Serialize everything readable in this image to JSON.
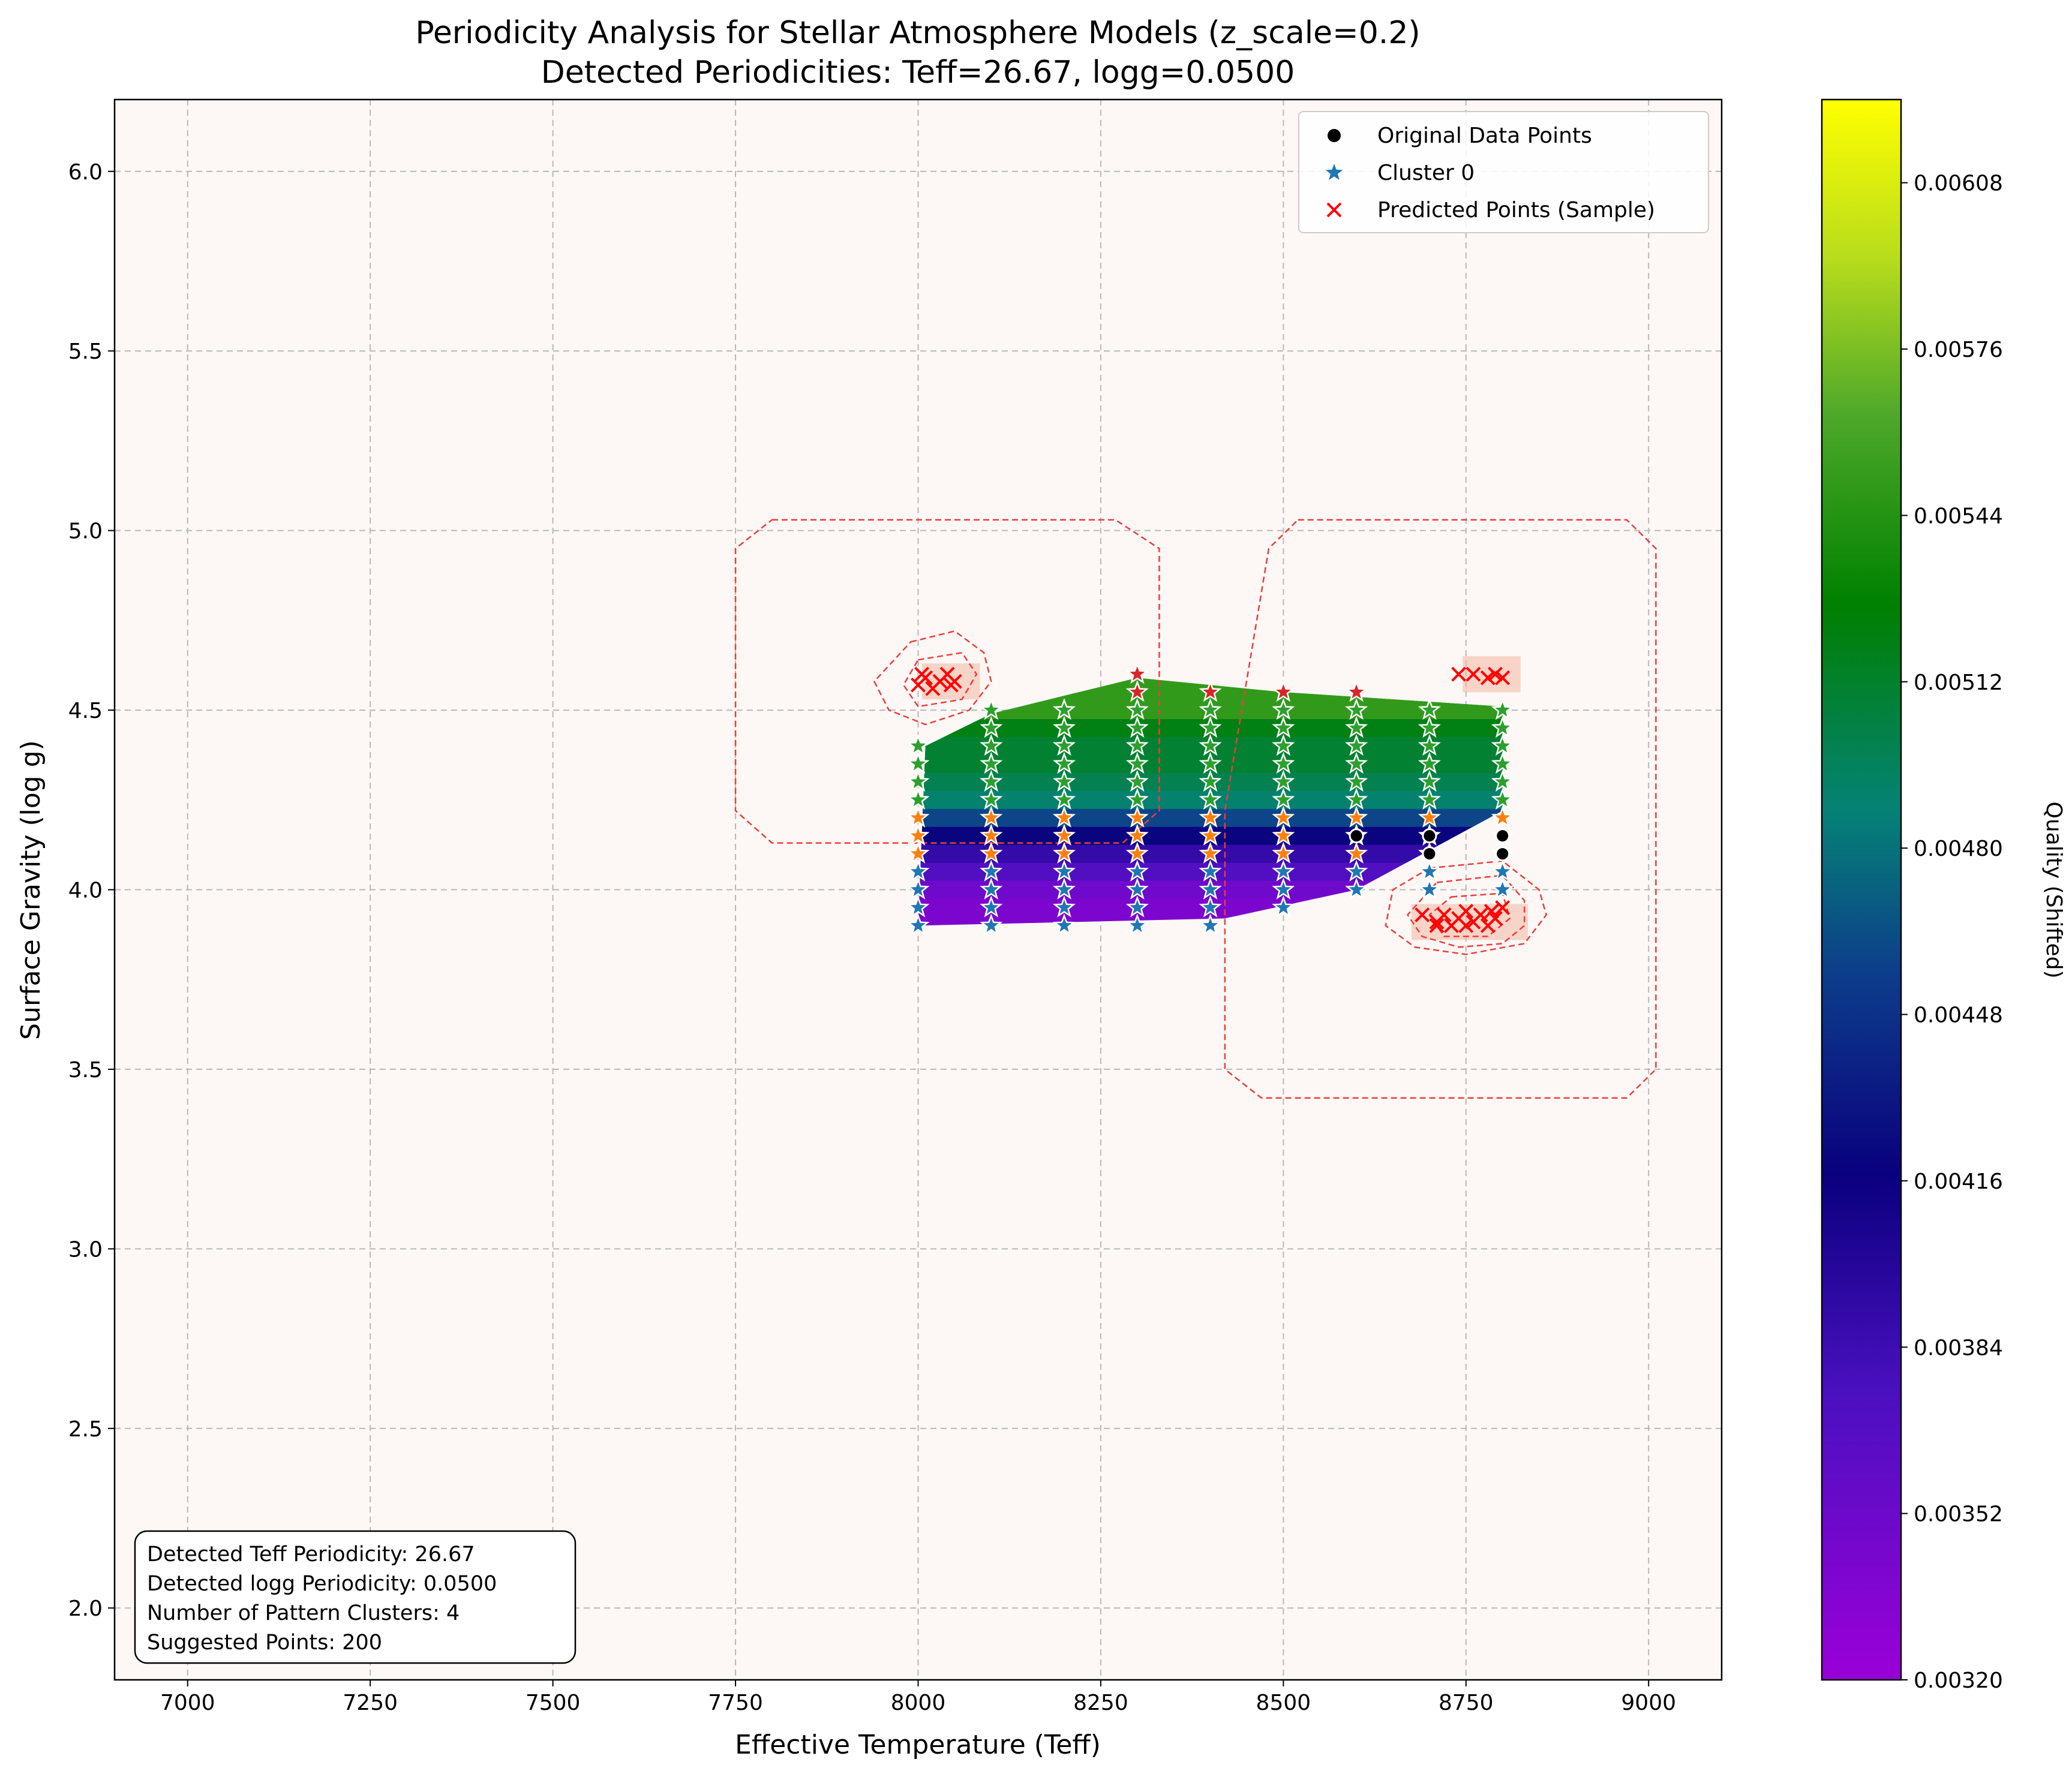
{
  "chart_data": {
    "type": "scatter",
    "title": "Periodicity Analysis for Stellar Atmosphere Models (z_scale=0.2)",
    "subtitle": "Detected Periodicities: Teff=26.67, logg=0.0500",
    "xlabel": "Effective Temperature (Teff)",
    "ylabel": "Surface Gravity (log g)",
    "xlim": [
      6900,
      9100
    ],
    "ylim": [
      1.8,
      6.2
    ],
    "xticks": [
      7000,
      7250,
      7500,
      7750,
      8000,
      8250,
      8500,
      8750,
      9000
    ],
    "yticks": [
      2.0,
      2.5,
      3.0,
      3.5,
      4.0,
      4.5,
      5.0,
      5.5,
      6.0
    ],
    "grid": true,
    "legend_position": "top-right",
    "legend": [
      {
        "label": "Original Data Points",
        "marker": "circle",
        "color": "#000000"
      },
      {
        "label": "Cluster 0",
        "marker": "star",
        "color": "#1f77b4"
      },
      {
        "label": "Predicted Points (Sample)",
        "marker": "x",
        "color": "#ff0000"
      }
    ],
    "colorbar": {
      "label": "Quality (Shifted)",
      "colormap": "gnuplot2-like",
      "range": [
        0.0032,
        0.00624
      ],
      "ticks": [
        "0.00320",
        "0.00352",
        "0.00384",
        "0.00416",
        "0.00448",
        "0.00480",
        "0.00512",
        "0.00544",
        "0.00576",
        "0.00608"
      ],
      "tick_values": [
        0.0032,
        0.00352,
        0.00384,
        0.00416,
        0.00448,
        0.0048,
        0.00512,
        0.00544,
        0.00576,
        0.00608
      ]
    },
    "quality_surface": {
      "teff_range": [
        8000,
        8800
      ],
      "logg_bands": [
        {
          "logg": 3.9,
          "quality": 0.0034
        },
        {
          "logg": 3.95,
          "quality": 0.0034
        },
        {
          "logg": 4.0,
          "quality": 0.0035
        },
        {
          "logg": 4.05,
          "quality": 0.0037
        },
        {
          "logg": 4.1,
          "quality": 0.0039
        },
        {
          "logg": 4.15,
          "quality": 0.0042
        },
        {
          "logg": 4.2,
          "quality": 0.0046
        },
        {
          "logg": 4.25,
          "quality": 0.0049
        },
        {
          "logg": 4.3,
          "quality": 0.005
        },
        {
          "logg": 4.35,
          "quality": 0.0051
        },
        {
          "logg": 4.4,
          "quality": 0.0051
        },
        {
          "logg": 4.45,
          "quality": 0.0052
        },
        {
          "logg": 4.5,
          "quality": 0.0055
        }
      ]
    },
    "original_points": [
      {
        "x": 8600,
        "y": 4.15
      },
      {
        "x": 8700,
        "y": 4.1
      },
      {
        "x": 8700,
        "y": 4.15
      },
      {
        "x": 8800,
        "y": 4.1
      },
      {
        "x": 8800,
        "y": 4.15
      }
    ],
    "clusters": [
      {
        "id": 0,
        "color": "#1f77b4",
        "logg_range": [
          3.9,
          4.05
        ]
      },
      {
        "id": 1,
        "color": "#ff7f0e",
        "logg_range": [
          4.1,
          4.25
        ]
      },
      {
        "id": 2,
        "color": "#2ca02c",
        "logg_range": [
          4.25,
          4.5
        ]
      },
      {
        "id": 3,
        "color": "#d62728",
        "logg_range": [
          4.5,
          4.6
        ]
      }
    ],
    "predicted_points": [
      {
        "x": 8000,
        "y": 4.57
      },
      {
        "x": 8010,
        "y": 4.59
      },
      {
        "x": 8020,
        "y": 4.56
      },
      {
        "x": 8030,
        "y": 4.58
      },
      {
        "x": 8040,
        "y": 4.6
      },
      {
        "x": 8050,
        "y": 4.58
      },
      {
        "x": 8005,
        "y": 4.6
      },
      {
        "x": 8045,
        "y": 4.57
      },
      {
        "x": 8740,
        "y": 4.6
      },
      {
        "x": 8760,
        "y": 4.6
      },
      {
        "x": 8780,
        "y": 4.59
      },
      {
        "x": 8790,
        "y": 4.6
      },
      {
        "x": 8800,
        "y": 4.59
      },
      {
        "x": 8690,
        "y": 3.93
      },
      {
        "x": 8710,
        "y": 3.91
      },
      {
        "x": 8720,
        "y": 3.93
      },
      {
        "x": 8730,
        "y": 3.9
      },
      {
        "x": 8740,
        "y": 3.92
      },
      {
        "x": 8750,
        "y": 3.94
      },
      {
        "x": 8760,
        "y": 3.91
      },
      {
        "x": 8770,
        "y": 3.93
      },
      {
        "x": 8780,
        "y": 3.9
      },
      {
        "x": 8790,
        "y": 3.92
      },
      {
        "x": 8800,
        "y": 3.95
      },
      {
        "x": 8710,
        "y": 3.9
      },
      {
        "x": 8750,
        "y": 3.9
      },
      {
        "x": 8785,
        "y": 3.94
      }
    ],
    "info_box": [
      "Detected Teff Periodicity: 26.67",
      "Detected logg Periodicity: 0.0500",
      "Number of Pattern Clusters: 4",
      "Suggested Points: 200"
    ]
  }
}
